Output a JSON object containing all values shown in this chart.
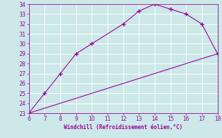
{
  "upper_x": [
    6,
    7,
    8,
    9,
    10,
    12,
    13,
    14,
    15,
    16,
    17,
    18
  ],
  "upper_y": [
    23,
    25,
    27,
    29,
    30,
    32,
    33.3,
    34,
    33.5,
    33,
    32,
    29
  ],
  "lower_x": [
    6,
    7,
    8,
    9,
    10,
    11,
    12,
    13,
    14,
    15,
    16,
    17,
    18
  ],
  "lower_y": [
    23,
    23.5,
    24.0,
    24.5,
    25.0,
    25.5,
    26.0,
    26.5,
    27.0,
    27.5,
    28.0,
    28.5,
    29.0
  ],
  "xlim": [
    6,
    18
  ],
  "ylim": [
    23,
    34
  ],
  "xticks": [
    6,
    7,
    8,
    9,
    10,
    11,
    12,
    13,
    14,
    15,
    16,
    17,
    18
  ],
  "yticks": [
    23,
    24,
    25,
    26,
    27,
    28,
    29,
    30,
    31,
    32,
    33,
    34
  ],
  "xlabel": "Windchill (Refroidissement éolien,°C)",
  "line_color": "#990099",
  "bg_color": "#cce8e8",
  "grid_color": "#ffffff",
  "marker": "+"
}
